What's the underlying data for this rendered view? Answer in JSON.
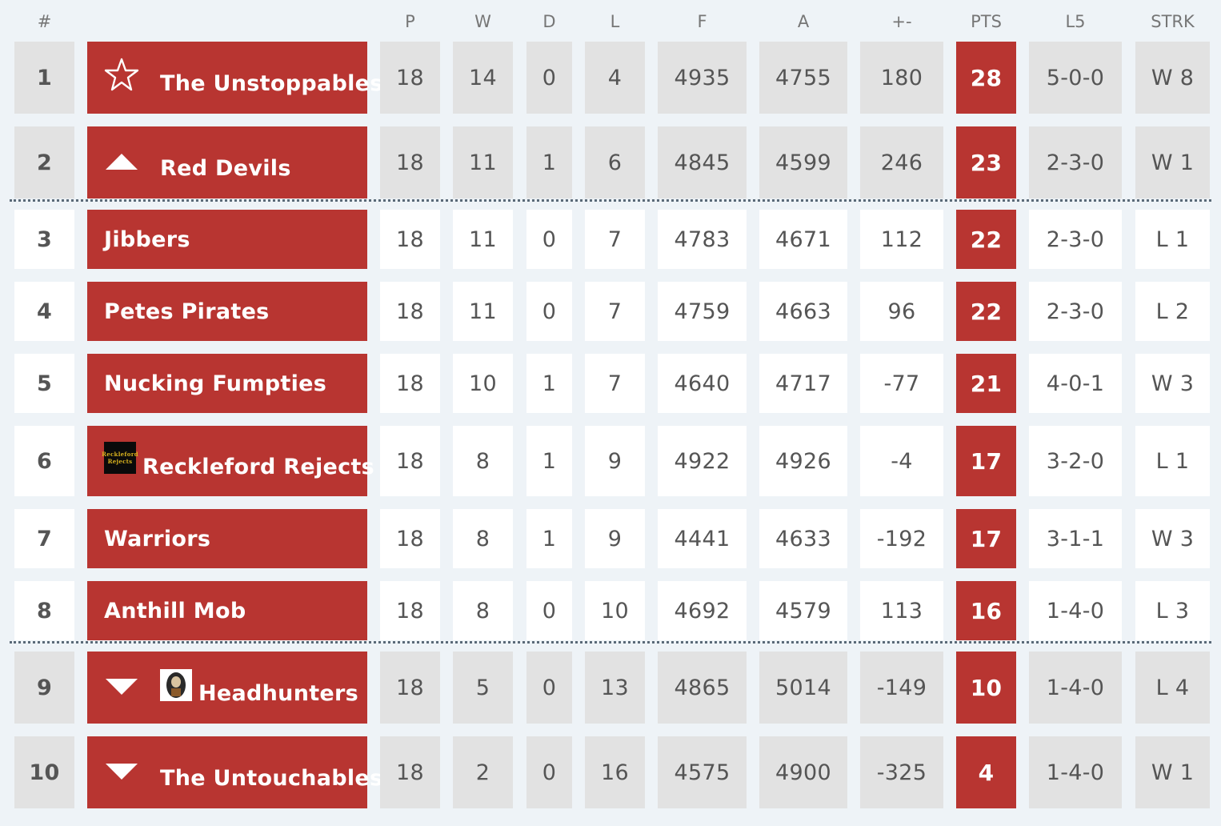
{
  "headers": {
    "pos": "#",
    "p": "P",
    "w": "W",
    "d": "D",
    "l": "L",
    "f": "F",
    "a": "A",
    "diff": "+-",
    "pts": "PTS",
    "l5": "L5",
    "strk": "STRK"
  },
  "rows": [
    {
      "pos": "1",
      "team": "The Unstoppables",
      "icon": "star-outline-icon",
      "p": "18",
      "w": "14",
      "d": "0",
      "l": "4",
      "f": "4935",
      "a": "4755",
      "diff": "180",
      "pts": "28",
      "l5": "5-0-0",
      "strk": "W 8",
      "tone": "gray"
    },
    {
      "pos": "2",
      "team": "Red Devils",
      "icon": "triangle-up-icon",
      "p": "18",
      "w": "11",
      "d": "1",
      "l": "6",
      "f": "4845",
      "a": "4599",
      "diff": "246",
      "pts": "23",
      "l5": "2-3-0",
      "strk": "W 1",
      "tone": "gray"
    },
    {
      "pos": "3",
      "team": "Jibbers",
      "icon": "",
      "p": "18",
      "w": "11",
      "d": "0",
      "l": "7",
      "f": "4783",
      "a": "4671",
      "diff": "112",
      "pts": "22",
      "l5": "2-3-0",
      "strk": "L 1",
      "tone": "white"
    },
    {
      "pos": "4",
      "team": "Petes Pirates",
      "icon": "",
      "p": "18",
      "w": "11",
      "d": "0",
      "l": "7",
      "f": "4759",
      "a": "4663",
      "diff": "96",
      "pts": "22",
      "l5": "2-3-0",
      "strk": "L 2",
      "tone": "white"
    },
    {
      "pos": "5",
      "team": "Nucking Fumpties",
      "icon": "",
      "p": "18",
      "w": "10",
      "d": "1",
      "l": "7",
      "f": "4640",
      "a": "4717",
      "diff": "-77",
      "pts": "21",
      "l5": "4-0-1",
      "strk": "W 3",
      "tone": "white"
    },
    {
      "pos": "6",
      "team": "Reckleford Rejects",
      "icon": "team-logo-icon",
      "logo_text": "Reckleford Rejects",
      "p": "18",
      "w": "8",
      "d": "1",
      "l": "9",
      "f": "4922",
      "a": "4926",
      "diff": "-4",
      "pts": "17",
      "l5": "3-2-0",
      "strk": "L 1",
      "tone": "white"
    },
    {
      "pos": "7",
      "team": "Warriors",
      "icon": "",
      "p": "18",
      "w": "8",
      "d": "1",
      "l": "9",
      "f": "4441",
      "a": "4633",
      "diff": "-192",
      "pts": "17",
      "l5": "3-1-1",
      "strk": "W 3",
      "tone": "white"
    },
    {
      "pos": "8",
      "team": "Anthill Mob",
      "icon": "",
      "p": "18",
      "w": "8",
      "d": "0",
      "l": "10",
      "f": "4692",
      "a": "4579",
      "diff": "113",
      "pts": "16",
      "l5": "1-4-0",
      "strk": "L 3",
      "tone": "white"
    },
    {
      "pos": "9",
      "team": "Headhunters",
      "icon": "triangle-down-icon",
      "icon2": "team-logo-icon",
      "p": "18",
      "w": "5",
      "d": "0",
      "l": "13",
      "f": "4865",
      "a": "5014",
      "diff": "-149",
      "pts": "10",
      "l5": "1-4-0",
      "strk": "L 4",
      "tone": "gray"
    },
    {
      "pos": "10",
      "team": "The Untouchables",
      "icon": "triangle-down-icon",
      "p": "18",
      "w": "2",
      "d": "0",
      "l": "16",
      "f": "4575",
      "a": "4900",
      "diff": "-325",
      "pts": "4",
      "l5": "1-4-0",
      "strk": "W 1",
      "tone": "gray"
    }
  ],
  "colors": {
    "team_bg": "#b83531",
    "pts_bg": "#b83531",
    "zone_cell": "#e2e2e2",
    "normal_cell": "#ffffff",
    "page_bg": "#eef3f7"
  }
}
